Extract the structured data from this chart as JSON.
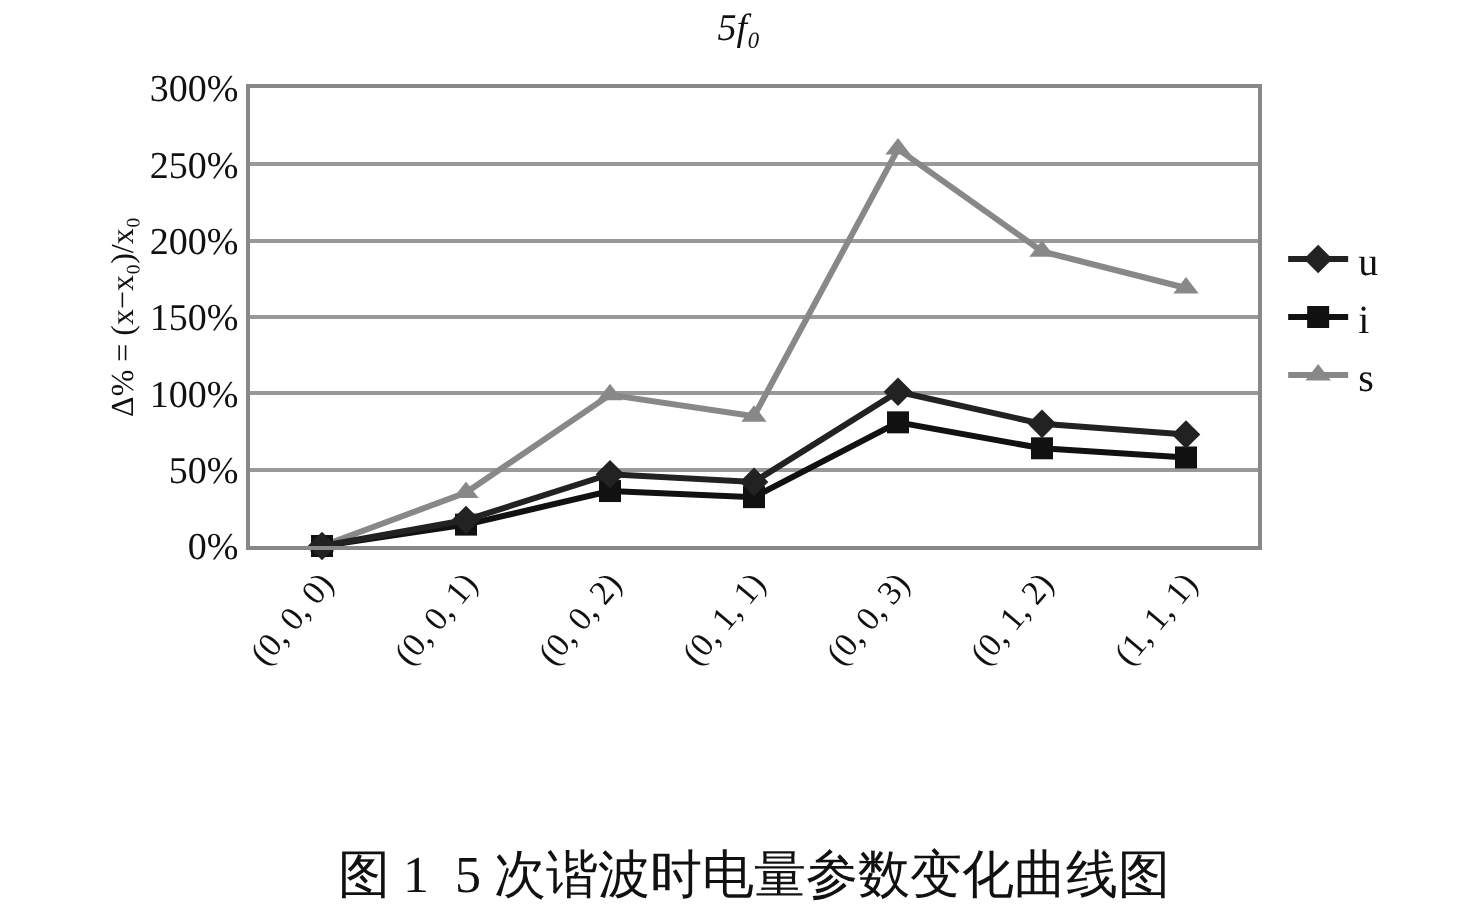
{
  "chart_data": {
    "type": "line",
    "title": "5f₀",
    "ylabel": "Δ% = (x−x₀)/x₀",
    "categories": [
      "(0, 0, 0)",
      "(0, 0, 1)",
      "(0, 0, 2)",
      "(0, 1, 1)",
      "(0, 0, 3)",
      "(0, 1, 2)",
      "(1, 1, 1)"
    ],
    "series": [
      {
        "name": "u",
        "color": "#222222",
        "marker": "diamond",
        "values": [
          0,
          17,
          47,
          42,
          101,
          80,
          73
        ]
      },
      {
        "name": "i",
        "color": "#111111",
        "marker": "square",
        "values": [
          0,
          14,
          36,
          32,
          81,
          64,
          58
        ]
      },
      {
        "name": "s",
        "color": "#888888",
        "marker": "triangle",
        "values": [
          0,
          35,
          99,
          85,
          260,
          193,
          169
        ]
      }
    ],
    "ylim": [
      0,
      300
    ],
    "yticks": [
      {
        "value": 0,
        "label": "0%"
      },
      {
        "value": 50,
        "label": "50%"
      },
      {
        "value": 100,
        "label": "100%"
      },
      {
        "value": 150,
        "label": "150%"
      },
      {
        "value": 200,
        "label": "200%"
      },
      {
        "value": 250,
        "label": "250%"
      },
      {
        "value": 300,
        "label": "300%"
      }
    ],
    "grid": "y",
    "legend": "right",
    "line_style": "solid",
    "annotations": [
      "图 1  5 次谐波时电量参数变化曲线图"
    ]
  }
}
